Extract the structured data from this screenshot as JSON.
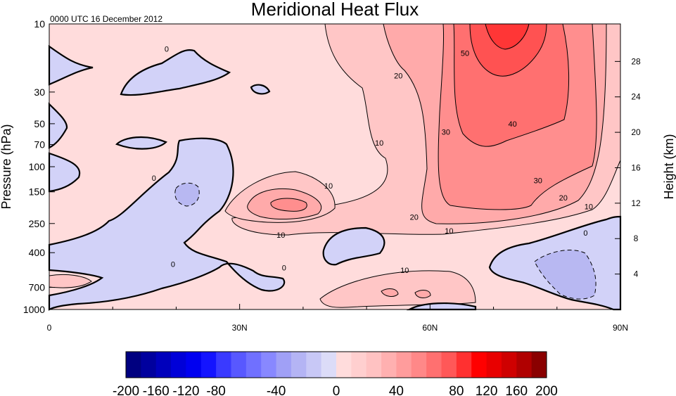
{
  "chart_data": {
    "type": "contour",
    "title": "Meridional Heat Flux",
    "subtitle": "0000 UTC 16 December 2012",
    "ylabel": "Pressure (hPa)",
    "ylabel_right": "Height (km)",
    "xlabel": "",
    "xlim": [
      0,
      90
    ],
    "ylim": [
      1000,
      10
    ],
    "y_scale": "log",
    "x_ticks": [
      {
        "value": 0,
        "label": "0"
      },
      {
        "value": 30,
        "label": "30N"
      },
      {
        "value": 60,
        "label": "60N"
      },
      {
        "value": 90,
        "label": "90N"
      }
    ],
    "y_ticks": [
      {
        "value": 10,
        "label": "10"
      },
      {
        "value": 30,
        "label": "30"
      },
      {
        "value": 50,
        "label": "50"
      },
      {
        "value": 70,
        "label": "70"
      },
      {
        "value": 100,
        "label": "100"
      },
      {
        "value": 150,
        "label": "150"
      },
      {
        "value": 250,
        "label": "250"
      },
      {
        "value": 400,
        "label": "400"
      },
      {
        "value": 700,
        "label": "700"
      },
      {
        "value": 1000,
        "label": "1000"
      }
    ],
    "height_ticks": [
      {
        "value": 28,
        "label": "28"
      },
      {
        "value": 24,
        "label": "24"
      },
      {
        "value": 20,
        "label": "20"
      },
      {
        "value": 16,
        "label": "16"
      },
      {
        "value": 12,
        "label": "12"
      },
      {
        "value": 8,
        "label": "8"
      },
      {
        "value": 4,
        "label": "4"
      }
    ],
    "contour_labels": [
      {
        "x": 18.5,
        "p": 15,
        "text": "0"
      },
      {
        "x": 16.5,
        "p": 120,
        "text": "0"
      },
      {
        "x": 19.5,
        "p": 480,
        "text": "0"
      },
      {
        "x": 37,
        "p": 510,
        "text": "0"
      },
      {
        "x": 84.5,
        "p": 290,
        "text": "0"
      },
      {
        "x": 44,
        "p": 136,
        "text": "10"
      },
      {
        "x": 36.5,
        "p": 300,
        "text": "10"
      },
      {
        "x": 52,
        "p": 68,
        "text": "10"
      },
      {
        "x": 56,
        "p": 530,
        "text": "10"
      },
      {
        "x": 63,
        "p": 280,
        "text": "10"
      },
      {
        "x": 85,
        "p": 190,
        "text": "10"
      },
      {
        "x": 55,
        "p": 23,
        "text": "20"
      },
      {
        "x": 57.5,
        "p": 225,
        "text": "20"
      },
      {
        "x": 81,
        "p": 165,
        "text": "20"
      },
      {
        "x": 62.5,
        "p": 57,
        "text": "30"
      },
      {
        "x": 77,
        "p": 125,
        "text": "30"
      },
      {
        "x": 73,
        "p": 50,
        "text": "40"
      },
      {
        "x": 65.5,
        "p": 16,
        "text": "50"
      }
    ],
    "colorbar": {
      "levels": [
        -200,
        -180,
        -160,
        -140,
        -120,
        -100,
        -80,
        -70,
        -60,
        -50,
        -40,
        -30,
        -20,
        -10,
        0,
        10,
        20,
        30,
        40,
        50,
        60,
        70,
        80,
        100,
        120,
        140,
        160,
        180,
        200
      ],
      "tick_labels": [
        "-200",
        "-160",
        "-120",
        "-80",
        "-40",
        "0",
        "40",
        "80",
        "120",
        "160",
        "200"
      ],
      "colors": [
        "#000080",
        "#00009e",
        "#0000bc",
        "#0000d8",
        "#0000f0",
        "#1414ff",
        "#3a3aff",
        "#5858ff",
        "#7070ff",
        "#8888ff",
        "#a0a0f6",
        "#b4b4f4",
        "#c8c8f6",
        "#dcdcf8",
        "#ffdcdc",
        "#ffcfcf",
        "#ffc2c2",
        "#ffb0b0",
        "#ff9c9c",
        "#ff8888",
        "#ff7070",
        "#ff5858",
        "#ff3030",
        "#ff0000",
        "#e80000",
        "#cf0000",
        "#b00000",
        "#8a0000"
      ]
    },
    "colors": {
      "neg_weak": "#d2d2f8",
      "neg_mid": "#b8b8f2",
      "pos_0_10": "#ffdcdc",
      "pos_10_20": "#ffc6c6",
      "pos_20_30": "#ffaaaa",
      "pos_30_40": "#ff8e8e",
      "pos_40_50": "#ff7070",
      "pos_50_60": "#ff5252",
      "pos_60_plus": "#ff3636"
    }
  }
}
